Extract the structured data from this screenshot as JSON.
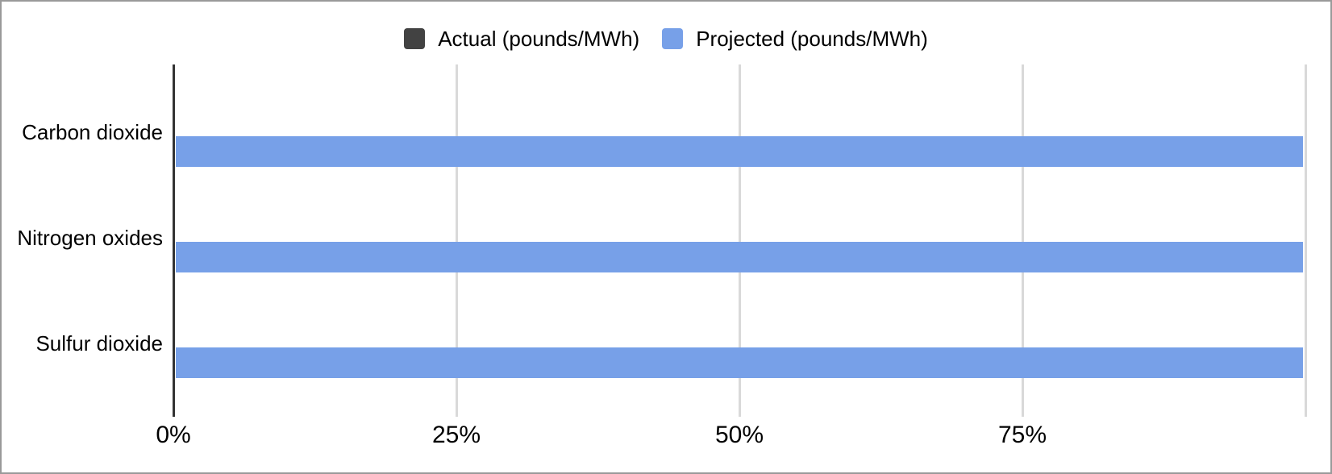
{
  "window": {
    "background_color": "#ffffff",
    "border_color": "#9a9a9a"
  },
  "colors": {
    "actual_series": "#424242",
    "projected_series": "#77a0e8",
    "axis_line": "#333333",
    "gridline": "#d9d9d9",
    "text": "#000000"
  },
  "legend": {
    "items": [
      {
        "label": "Actual (pounds/MWh)",
        "color": "#424242",
        "swatch": "dark-square"
      },
      {
        "label": "Projected (pounds/MWh)",
        "color": "#77a0e8",
        "swatch": "blue-square"
      }
    ]
  },
  "chart_data": {
    "type": "bar",
    "orientation": "horizontal",
    "title": "",
    "xlabel": "",
    "ylabel": "",
    "categories": [
      "Carbon dioxide",
      "Nitrogen oxides",
      "Sulfur dioxide"
    ],
    "series": [
      {
        "name": "Actual (pounds/MWh)",
        "color": "#424242",
        "values": [
          0,
          0,
          0
        ]
      },
      {
        "name": "Projected (pounds/MWh)",
        "color": "#77a0e8",
        "values": [
          100,
          100,
          100
        ]
      }
    ],
    "value_format": "percent",
    "xlim": [
      0,
      100
    ],
    "x_ticks": [
      {
        "value": 0,
        "label": "0%"
      },
      {
        "value": 25,
        "label": "25%"
      },
      {
        "value": 50,
        "label": "50%"
      },
      {
        "value": 75,
        "label": "75%"
      },
      {
        "value": 100,
        "label": ""
      }
    ],
    "grid": true,
    "legend_position": "top-center"
  }
}
